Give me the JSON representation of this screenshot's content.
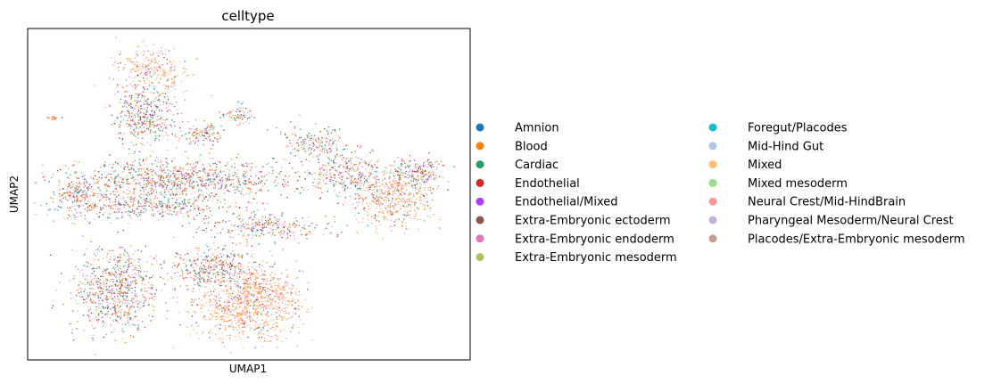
{
  "chart_data": {
    "type": "scatter",
    "title": "celltype",
    "xlabel": "UMAP1",
    "ylabel": "UMAP2",
    "xticks": [],
    "yticks": [],
    "grid": false,
    "legend_placement": "right",
    "legend_columns": 2,
    "series": [
      {
        "name": "Amnion",
        "color": "#1f77b4"
      },
      {
        "name": "Blood",
        "color": "#ff7f0e"
      },
      {
        "name": "Cardiac",
        "color": "#279e68"
      },
      {
        "name": "Endothelial",
        "color": "#d62728"
      },
      {
        "name": "Endothelial/Mixed",
        "color": "#aa40fc"
      },
      {
        "name": "Extra-Embryonic ectoderm",
        "color": "#8c564b"
      },
      {
        "name": "Extra-Embryonic endoderm",
        "color": "#e377c2"
      },
      {
        "name": "Extra-Embryonic mesoderm",
        "color": "#b5bd61"
      },
      {
        "name": "Foregut/Placodes",
        "color": "#17becf"
      },
      {
        "name": "Mid-Hind Gut",
        "color": "#aec7e8"
      },
      {
        "name": "Mixed",
        "color": "#ffbb78"
      },
      {
        "name": "Mixed mesoderm",
        "color": "#98df8a"
      },
      {
        "name": "Neural Crest/Mid-HindBrain",
        "color": "#ff9896"
      },
      {
        "name": "Pharyngeal Mesoderm/Neural Crest",
        "color": "#c5b0d5"
      },
      {
        "name": "Placodes/Extra-Embryonic mesoderm",
        "color": "#c49c94"
      }
    ]
  }
}
